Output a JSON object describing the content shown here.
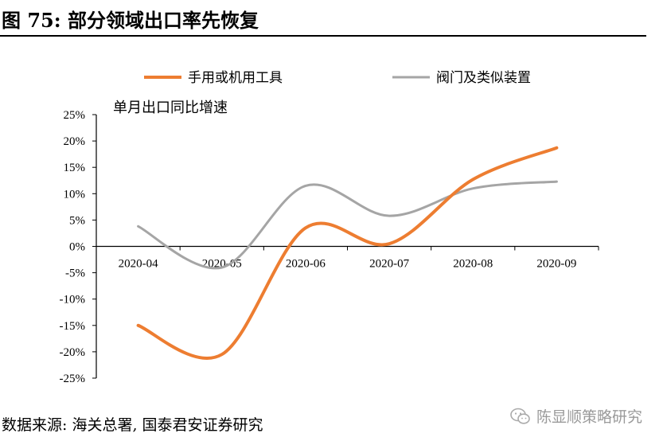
{
  "header": {
    "title": "图 75:  部分领域出口率先恢复"
  },
  "footer": {
    "source": "数据来源:  海关总署,  国泰君安证券研究"
  },
  "watermark": {
    "text": "陈显顺策略研究",
    "icon": "wechat-icon"
  },
  "chart_data": {
    "type": "line",
    "unit_label": "单月出口同比增速",
    "categories": [
      "2020-04",
      "2020-05",
      "2020-06",
      "2020-07",
      "2020-08",
      "2020-09"
    ],
    "y_ticks": [
      "25%",
      "20%",
      "15%",
      "10%",
      "5%",
      "0%",
      "-5%",
      "-10%",
      "-15%",
      "-20%",
      "-25%"
    ],
    "ylim": [
      -25,
      25
    ],
    "grid": false,
    "legend_position": "top",
    "series": [
      {
        "name": "手用或机用工具",
        "color": "#ED7D31",
        "values": [
          -15.0,
          -20.5,
          3.5,
          0.5,
          12.7,
          18.7
        ]
      },
      {
        "name": "阀门及类似装置",
        "color": "#A5A5A5",
        "values": [
          3.8,
          -4.0,
          11.5,
          5.8,
          11.0,
          12.3
        ]
      }
    ]
  }
}
